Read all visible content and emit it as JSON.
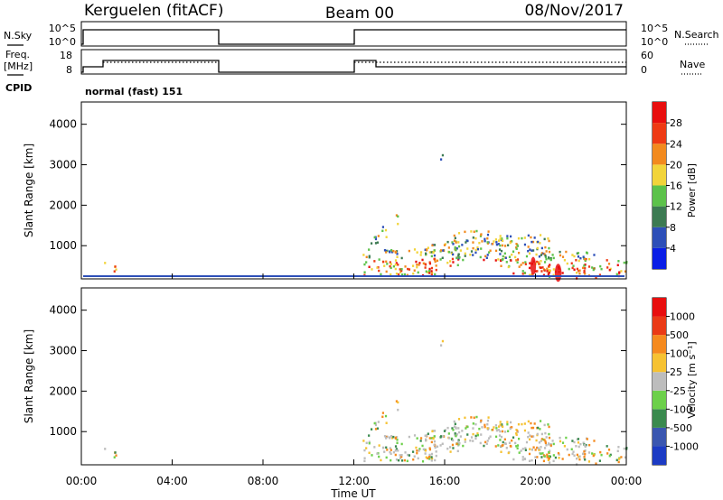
{
  "header": {
    "station": "Kerguelen (fitACF)",
    "beam": "Beam 00",
    "date": "08/Nov/2017"
  },
  "sky_panel": {
    "left_label": "N.Sky",
    "right_label": "N.Search",
    "left_ticks": [
      "10^5",
      "10^0"
    ],
    "right_ticks": [
      "10^5",
      "10^0"
    ]
  },
  "freq_panel": {
    "left_label_1": "Freq.",
    "left_label_2": "[MHz]",
    "right_label": "Nave",
    "left_ticks": [
      "18",
      "8"
    ],
    "right_ticks": [
      "60",
      "0"
    ],
    "cpid_label": "CPID",
    "cpid_text": "normal (fast) 151"
  },
  "chart_data": [
    {
      "type": "heatmap",
      "title": "",
      "xlabel": "Time UT",
      "ylabel": "Slant Range [km]",
      "x_ticks": [
        "00:00",
        "04:00",
        "08:00",
        "12:00",
        "16:00",
        "20:00",
        "00:00"
      ],
      "y_ticks": [
        "1000",
        "2000",
        "3000",
        "4000"
      ],
      "xlim_hours": [
        0,
        24
      ],
      "ylim_km": [
        180,
        4550
      ],
      "colorbar": {
        "label": "Power [dB]",
        "ticks": [
          "4",
          "8",
          "12",
          "16",
          "20",
          "24",
          "28"
        ],
        "colors": [
          "#0a1ee6",
          "#2d4fb8",
          "#3c7a52",
          "#5cc24a",
          "#f2d43a",
          "#f28a1e",
          "#ee3a14",
          "#e80e0e"
        ]
      }
    },
    {
      "type": "heatmap",
      "title": "",
      "xlabel": "Time UT",
      "ylabel": "Slant Range [km]",
      "x_ticks": [
        "00:00",
        "04:00",
        "08:00",
        "12:00",
        "16:00",
        "20:00",
        "00:00"
      ],
      "y_ticks": [
        "1000",
        "2000",
        "3000",
        "4000"
      ],
      "xlim_hours": [
        0,
        24
      ],
      "ylim_km": [
        180,
        4550
      ],
      "colorbar": {
        "label": "Velocity [m s⁻¹]",
        "ticks": [
          "1000",
          "500",
          "100",
          "25",
          "-25",
          "-100",
          "-500",
          "-1000"
        ],
        "colors": [
          "#1c3bc4",
          "#3a56b0",
          "#3a8a4e",
          "#6cd04a",
          "#bdbdbd",
          "#f6c232",
          "#f58a1e",
          "#ea3a16",
          "#e80e0e"
        ]
      }
    }
  ]
}
